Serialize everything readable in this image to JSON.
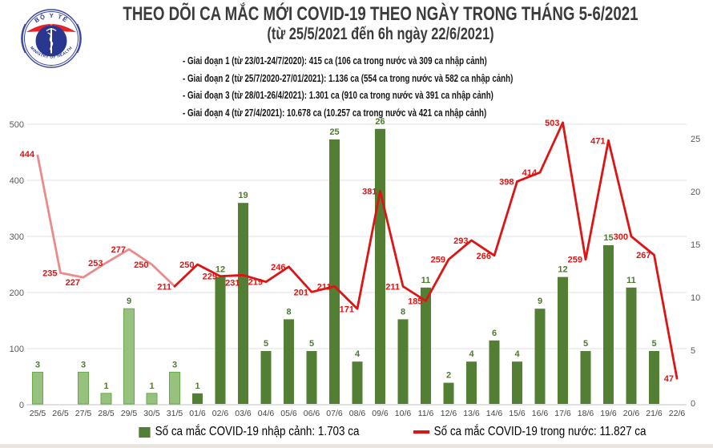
{
  "header": {
    "logo": {
      "top_text": "BỘ Y TẾ",
      "bottom_text": "MINISTRY OF HEALTH"
    },
    "title": "THEO DÕI CA MẮC MỚI COVID-19 THEO NGÀY TRONG THÁNG 5-6/2021",
    "subtitle": "(từ 25/5/2021 đến 6h ngày 22/6/2021)",
    "phases": [
      "- Giai đoạn 1 (từ 23/01-24/7/2020): 415 ca (106 ca trong nước và 309 ca nhập cảnh)",
      "- Giai đoạn 2 (từ 25/7/2020-27/01/2021): 1.136 ca (554 ca trong nước và 582 ca nhập cảnh)",
      "- Giai đoạn 3 (từ 28/01-26/4/2021): 1.301 ca (910 ca trong nước và 391 ca nhập cảnh)",
      "- Giai đoạn 4 (từ 27/4/2021): 10.678 ca (10.257 ca trong nước và 421 ca nhập cảnh)"
    ]
  },
  "chart_data": {
    "type": "combo-bar-line",
    "title": "THEO DÕI CA MẮC MỚI COVID-19 THEO NGÀY TRONG THÁNG 5-6/2021",
    "categories": [
      "25/5",
      "26/5",
      "27/5",
      "28/5",
      "29/5",
      "30/5",
      "31/5",
      "01/6",
      "02/6",
      "03/6",
      "04/6",
      "05/6",
      "06/6",
      "07/6",
      "08/6",
      "09/6",
      "10/6",
      "11/6",
      "12/6",
      "13/6",
      "14/6",
      "15/6",
      "16/6",
      "17/6",
      "18/6",
      "19/6",
      "20/6",
      "21/6",
      "22/6"
    ],
    "series": [
      {
        "name": "Số ca mắc COVID-19 nhập cảnh",
        "type": "bar",
        "axis": "right",
        "values": [
          3,
          0,
          3,
          1,
          9,
          1,
          3,
          1,
          12,
          19,
          5,
          8,
          5,
          25,
          4,
          26,
          8,
          11,
          2,
          4,
          6,
          4,
          9,
          12,
          5,
          15,
          11,
          5,
          0
        ]
      },
      {
        "name": "Số ca mắc COVID-19 trong nước",
        "type": "line",
        "axis": "left",
        "values": [
          444,
          235,
          227,
          253,
          277,
          250,
          211,
          250,
          229,
          231,
          219,
          246,
          201,
          211,
          171,
          381,
          211,
          185,
          259,
          293,
          266,
          398,
          414,
          503,
          259,
          471,
          300,
          267,
          47
        ]
      }
    ],
    "left_axis": {
      "ticks": [
        0,
        100,
        200,
        300,
        400,
        500
      ],
      "range": [
        0,
        500
      ]
    },
    "right_axis": {
      "ticks": [
        0,
        5,
        10,
        15,
        20,
        25
      ],
      "range": [
        0,
        26.5
      ]
    },
    "grid": true,
    "legend_position": "bottom",
    "light_until_index": 6,
    "colors": {
      "bar_light": "#97c27e",
      "bar_light_border": "#6aa84f",
      "bar_dark": "#527f33",
      "line_light": "#ea8b8b",
      "line_dark": "#dd1414",
      "bar_label": "#4e7a2f",
      "line_label": "#e01414"
    }
  },
  "legend": {
    "imported_label": "Số ca mắc COVID-19 nhập cảnh: 1.703 ca",
    "domestic_label": "Số ca mắc COVID-19 trong nước: 11.827 ca"
  }
}
